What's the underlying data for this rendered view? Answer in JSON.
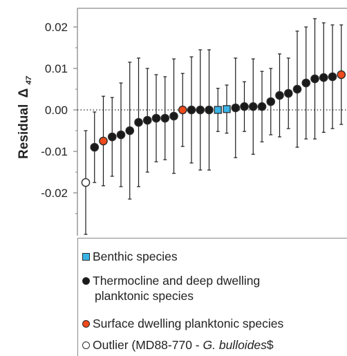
{
  "chart_data": {
    "type": "scatter",
    "title": "",
    "xlabel": "",
    "ylabel": "Residual",
    "ylabel_symbol": "Δ",
    "ylabel_subscript": "47",
    "ylim": [
      -0.03,
      0.025
    ],
    "yticks": [
      "0.02",
      "0.01",
      "0.00",
      "-0.01",
      "-0.02"
    ],
    "ytick_values": [
      0.02,
      0.01,
      0.0,
      -0.01,
      -0.02
    ],
    "reference_line": 0.0,
    "grid": false,
    "colors": {
      "benthic": "#3ab4e6",
      "thermocline": "#1a1a1a",
      "surface": "#ee4a1c",
      "outlier": "#ffffff",
      "marker_edge": "#2a2a2a",
      "error_bar": "#1a1a1a"
    },
    "points": [
      {
        "y": -0.0175,
        "err": 0.0125,
        "group": "outlier"
      },
      {
        "y": -0.009,
        "err": 0.0085,
        "group": "thermocline"
      },
      {
        "y": -0.0075,
        "err": 0.0108,
        "group": "surface"
      },
      {
        "y": -0.0065,
        "err": 0.0095,
        "group": "thermocline"
      },
      {
        "y": -0.006,
        "err": 0.0125,
        "group": "thermocline"
      },
      {
        "y": -0.005,
        "err": 0.0165,
        "group": "thermocline"
      },
      {
        "y": -0.003,
        "err": 0.0155,
        "group": "thermocline"
      },
      {
        "y": -0.0025,
        "err": 0.0125,
        "group": "thermocline"
      },
      {
        "y": -0.002,
        "err": 0.0105,
        "group": "thermocline"
      },
      {
        "y": -0.002,
        "err": 0.01,
        "group": "thermocline"
      },
      {
        "y": -0.0015,
        "err": 0.0138,
        "group": "thermocline"
      },
      {
        "y": 0.0,
        "err": 0.0088,
        "group": "surface"
      },
      {
        "y": 0.0,
        "err": 0.0128,
        "group": "thermocline"
      },
      {
        "y": 0.0,
        "err": 0.0145,
        "group": "thermocline"
      },
      {
        "y": 0.0,
        "err": 0.0145,
        "group": "thermocline"
      },
      {
        "y": 0.0,
        "err": 0.0052,
        "group": "benthic"
      },
      {
        "y": 0.0002,
        "err": 0.0058,
        "group": "benthic"
      },
      {
        "y": 0.0005,
        "err": 0.012,
        "group": "thermocline"
      },
      {
        "y": 0.0008,
        "err": 0.006,
        "group": "thermocline"
      },
      {
        "y": 0.0008,
        "err": 0.0115,
        "group": "thermocline"
      },
      {
        "y": 0.0008,
        "err": 0.0085,
        "group": "thermocline"
      },
      {
        "y": 0.002,
        "err": 0.008,
        "group": "thermocline"
      },
      {
        "y": 0.0035,
        "err": 0.01,
        "group": "thermocline"
      },
      {
        "y": 0.004,
        "err": 0.0085,
        "group": "thermocline"
      },
      {
        "y": 0.005,
        "err": 0.014,
        "group": "thermocline"
      },
      {
        "y": 0.0065,
        "err": 0.0135,
        "group": "thermocline"
      },
      {
        "y": 0.0075,
        "err": 0.0145,
        "group": "thermocline"
      },
      {
        "y": 0.0078,
        "err": 0.0132,
        "group": "thermocline"
      },
      {
        "y": 0.008,
        "err": 0.0125,
        "group": "thermocline"
      },
      {
        "y": 0.0085,
        "err": 0.012,
        "group": "surface"
      }
    ]
  },
  "legend": {
    "benthic": "Benthic species",
    "thermocline_line1": "Thermocline  and  deep dwelling",
    "thermocline_line2": "planktonic  species",
    "surface": "Surface dwelling planktonic species",
    "outlier_prefix": "Outlier  (MD88-770  - ",
    "outlier_italic": "G. bulloides",
    "outlier_suffix": "$"
  }
}
